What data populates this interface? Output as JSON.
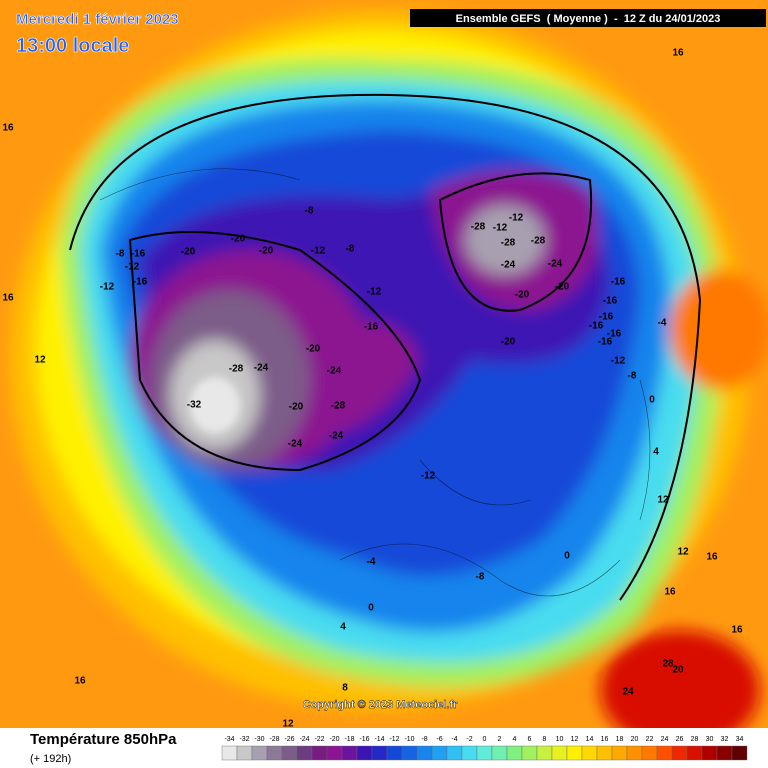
{
  "header": {
    "date": "Mercredi 1 février 2023",
    "local_time": "13:00 locale",
    "model": "Ensemble GEFS  ( Moyenne )  -  12 Z du 24/01/2023"
  },
  "copyright": "Copyright © 2023 Meteociel.fr",
  "footer": {
    "title": "Température 850hPa",
    "lead": "(+ 192h)"
  },
  "scale": {
    "labels": [
      -34,
      -32,
      -30,
      -28,
      -26,
      -24,
      -22,
      -20,
      -18,
      -16,
      -14,
      -12,
      -10,
      -8,
      -6,
      -4,
      -2,
      0,
      2,
      4,
      6,
      8,
      10,
      12,
      14,
      16,
      18,
      20,
      22,
      24,
      26,
      28,
      30,
      32,
      34
    ],
    "colors": [
      "#e8e8e8",
      "#c8c8c8",
      "#a8a0b0",
      "#8c7898",
      "#7c5c88",
      "#6c3c80",
      "#781c80",
      "#8c1490",
      "#6c14a0",
      "#3c14b4",
      "#2428c8",
      "#1448d8",
      "#1464e4",
      "#1884ec",
      "#20a0f0",
      "#30c0f4",
      "#48dcf0",
      "#60ecd8",
      "#70f0b0",
      "#80f080",
      "#a0f060",
      "#c8f040",
      "#e8f020",
      "#fff000",
      "#ffd800",
      "#ffc000",
      "#ffa800",
      "#ff9000",
      "#ff7800",
      "#ff5000",
      "#f02800",
      "#d81000",
      "#b00000",
      "#880000",
      "#600000"
    ]
  },
  "contour_labels": [
    "-8",
    "-16",
    "-12",
    "-12",
    "-16",
    "-20",
    "-20",
    "-20",
    "-8",
    "-12",
    "-8",
    "-12",
    "-16",
    "-20",
    "-24",
    "-28",
    "-32",
    "-24",
    "-20",
    "-28",
    "-24",
    "-24",
    "-12",
    "-28",
    "-12",
    "-12",
    "-28",
    "-28",
    "-24",
    "-24",
    "-20",
    "-20",
    "-20",
    "-16",
    "-16",
    "-16",
    "-16",
    "-16",
    "-16",
    "-12",
    "-8",
    "-4",
    "0",
    "4",
    "12",
    "16",
    "8",
    "4",
    "0",
    "-4",
    "-8",
    "0",
    "16",
    "16",
    "16",
    "12",
    "16",
    "12",
    "24",
    "28",
    "20",
    "16",
    "16",
    "12"
  ]
}
